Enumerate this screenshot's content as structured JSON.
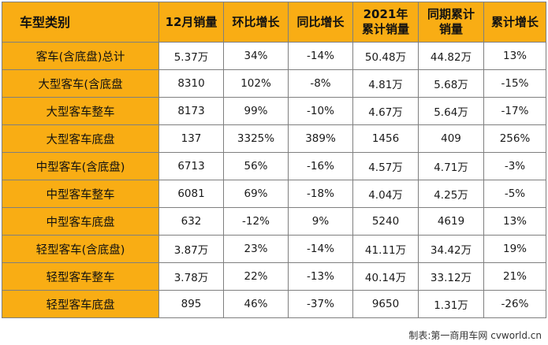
{
  "colors": {
    "header_bg": "#f9ad14",
    "border": "#7f7f7f",
    "cell_bg": "#ffffff"
  },
  "table": {
    "headers": [
      "车型类别",
      "12月销量",
      "环比增长",
      "同比增长",
      "2021年累计销量",
      "同期累计销量",
      "累计增长"
    ],
    "rows": [
      [
        "客车(含底盘)总计",
        "5.37万",
        "34%",
        "-14%",
        "50.48万",
        "44.82万",
        "13%"
      ],
      [
        "大型客车(含底盘",
        "8310",
        "102%",
        "-8%",
        "4.81万",
        "5.68万",
        "-15%"
      ],
      [
        "大型客车整车",
        "8173",
        "99%",
        "-10%",
        "4.67万",
        "5.64万",
        "-17%"
      ],
      [
        "大型客车底盘",
        "137",
        "3325%",
        "389%",
        "1456",
        "409",
        "256%"
      ],
      [
        "中型客车(含底盘)",
        "6713",
        "56%",
        "-16%",
        "4.57万",
        "4.71万",
        "-3%"
      ],
      [
        "中型客车整车",
        "6081",
        "69%",
        "-18%",
        "4.04万",
        "4.25万",
        "-5%"
      ],
      [
        "中型客车底盘",
        "632",
        "-12%",
        "9%",
        "5240",
        "4619",
        "13%"
      ],
      [
        "轻型客车(含底盘)",
        "3.87万",
        "23%",
        "-14%",
        "41.11万",
        "34.42万",
        "19%"
      ],
      [
        "轻型客车整车",
        "3.78万",
        "22%",
        "-13%",
        "40.14万",
        "33.12万",
        "21%"
      ],
      [
        "轻型客车底盘",
        "895",
        "46%",
        "-37%",
        "9650",
        "1.31万",
        "-26%"
      ]
    ]
  },
  "footer": {
    "credit": "制表:第一商用车网 cvworld.cn"
  }
}
